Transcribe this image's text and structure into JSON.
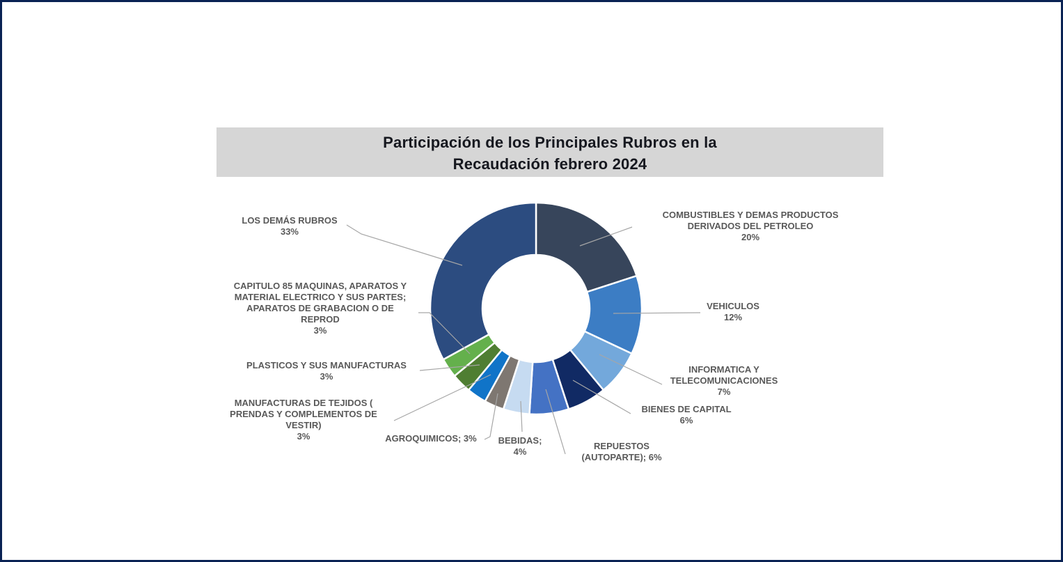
{
  "page": {
    "border_color": "#0A2254",
    "background_color": "#FFFFFF"
  },
  "title": {
    "line1": "Participación de los Principales Rubros en la",
    "line2": "Recaudación febrero 2024",
    "band_color": "#D6D6D6",
    "text_color": "#16181F"
  },
  "chart_data": {
    "type": "pie",
    "subtype": "donut",
    "title": "Participación de los Principales Rubros en la Recaudación febrero 2024",
    "unit": "%",
    "start_angle_deg": 0,
    "direction": "clockwise",
    "hole_ratio": 0.5,
    "legend_position": "none",
    "labels_style": "outside-callouts",
    "leader_line_color": "#A6A6A6",
    "label_color": "#595959",
    "segments": [
      {
        "id": "combustibles",
        "label": "COMBUSTIBLES Y DEMAS PRODUCTOS DERIVADOS DEL PETROLEO",
        "label_lines": [
          "COMBUSTIBLES Y DEMAS PRODUCTOS",
          "DERIVADOS DEL PETROLEO",
          "20%"
        ],
        "value_pct": 20,
        "color": "#37455B"
      },
      {
        "id": "vehiculos",
        "label": "VEHICULOS",
        "label_lines": [
          "VEHICULOS",
          "12%"
        ],
        "value_pct": 12,
        "color": "#3C7DC4"
      },
      {
        "id": "informatica",
        "label": "INFORMATICA Y TELECOMUNICACIONES",
        "label_lines": [
          "INFORMATICA Y",
          "TELECOMUNICACIONES",
          "7%"
        ],
        "value_pct": 7,
        "color": "#73A8DB"
      },
      {
        "id": "bienes",
        "label": "BIENES DE CAPITAL",
        "label_lines": [
          "BIENES DE CAPITAL",
          "6%"
        ],
        "value_pct": 6,
        "color": "#112A64"
      },
      {
        "id": "repuestos",
        "label": "REPUESTOS (AUTOPARTE)",
        "label_lines": [
          "REPUESTOS",
          "(AUTOPARTE);  6%"
        ],
        "value_pct": 6,
        "color": "#4472C4"
      },
      {
        "id": "bebidas",
        "label": "BEBIDAS",
        "label_lines": [
          "BEBIDAS;",
          "4%"
        ],
        "value_pct": 4,
        "color": "#C6DBF1"
      },
      {
        "id": "agroquimicos",
        "label": "AGROQUIMICOS",
        "label_lines": [
          "AGROQUIMICOS; 3%"
        ],
        "value_pct": 3,
        "color": "#7E7771"
      },
      {
        "id": "tejidos",
        "label": "MANUFACTURAS DE TEJIDOS ( PRENDAS Y COMPLEMENTOS DE VESTIR)",
        "label_lines": [
          "MANUFACTURAS DE TEJIDOS (",
          "PRENDAS Y COMPLEMENTOS DE",
          "VESTIR)",
          "3%"
        ],
        "value_pct": 3,
        "color": "#1074C8"
      },
      {
        "id": "plasticos",
        "label": "PLASTICOS Y SUS MANUFACTURAS",
        "label_lines": [
          "PLASTICOS Y SUS MANUFACTURAS",
          "3%"
        ],
        "value_pct": 3,
        "color": "#4F7E32"
      },
      {
        "id": "capitulo85",
        "label": "CAPITULO 85 MAQUINAS, APARATOS Y MATERIAL ELECTRICO Y SUS PARTES; APARATOS DE GRABACION O DE REPROD",
        "label_lines": [
          "CAPITULO 85 MAQUINAS, APARATOS Y",
          "MATERIAL ELECTRICO Y SUS PARTES;",
          "APARATOS DE GRABACION O DE",
          "REPROD",
          "3%"
        ],
        "value_pct": 3,
        "color": "#64B04C"
      },
      {
        "id": "los_demas",
        "label": "LOS DEMÁS RUBROS",
        "label_lines": [
          "LOS DEMÁS RUBROS",
          "33%"
        ],
        "value_pct": 33,
        "color": "#2C4C80"
      }
    ]
  }
}
